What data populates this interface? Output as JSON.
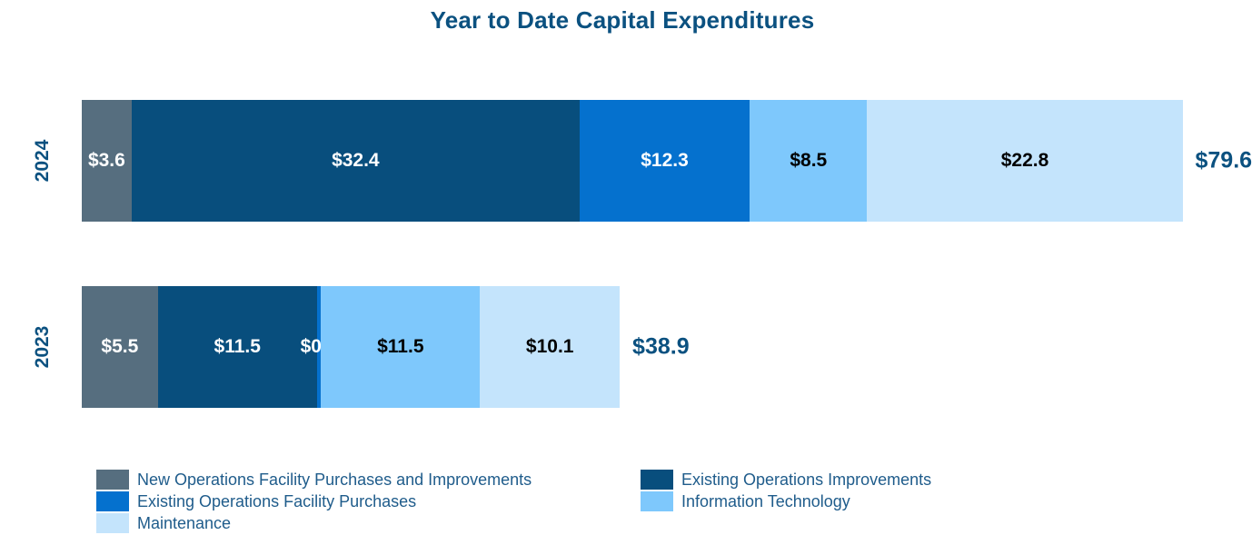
{
  "chart_data": {
    "type": "bar",
    "variant": "horizontal-stacked",
    "title": "Year to Date Capital Expenditures",
    "value_prefix": "$",
    "categories": [
      "2024",
      "2023"
    ],
    "series": [
      {
        "name": "New Operations Facility Purchases and Improvements",
        "color": "#566E7F",
        "label_color": "#FFFFFF",
        "values": [
          3.6,
          5.5
        ]
      },
      {
        "name": "Existing Operations Improvements",
        "color": "#084E7D",
        "label_color": "#FFFFFF",
        "values": [
          32.4,
          11.5
        ]
      },
      {
        "name": "Existing Operations Facility Purchases",
        "color": "#0571CE",
        "label_color": "#FFFFFF",
        "values": [
          12.3,
          0.3
        ]
      },
      {
        "name": "Information Technology",
        "color": "#7EC8FC",
        "label_color": "#000000",
        "values": [
          8.5,
          11.5
        ]
      },
      {
        "name": "Maintenance",
        "color": "#C4E4FC",
        "label_color": "#000000",
        "values": [
          22.8,
          10.1
        ]
      }
    ],
    "totals": [
      "$79.6",
      "$38.9"
    ],
    "grid": false,
    "legend_position": "bottom"
  },
  "colors": {
    "background": "#FFFFFF",
    "title_text": "#0B5180",
    "axis_text": "#0B5180",
    "total_text": "#0B5180",
    "legend_text": "#1F5C8B"
  },
  "legend": {
    "columns": [
      [
        {
          "label": "New Operations Facility Purchases and Improvements",
          "color": "#566E7F"
        },
        {
          "label": "Existing Operations Facility Purchases",
          "color": "#0571CE"
        },
        {
          "label": "Maintenance",
          "color": "#C4E4FC"
        }
      ],
      [
        {
          "label": "Existing Operations Improvements",
          "color": "#084E7D"
        },
        {
          "label": "Information Technology",
          "color": "#7EC8FC"
        }
      ]
    ]
  }
}
